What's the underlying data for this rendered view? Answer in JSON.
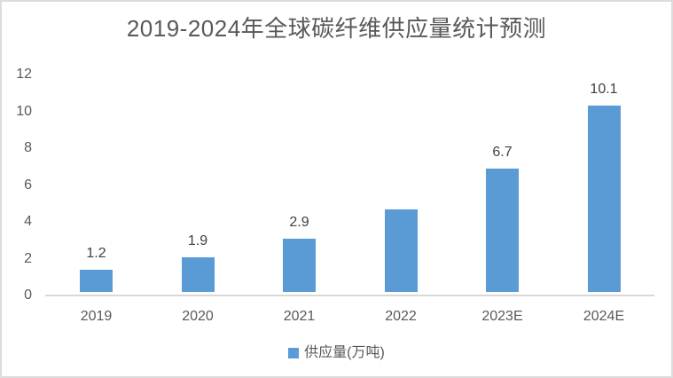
{
  "chart_data": {
    "type": "bar",
    "title": "2019-2024年全球碳纤维供应量统计预测",
    "categories": [
      "2019",
      "2020",
      "2021",
      "2022",
      "2023E",
      "2024E"
    ],
    "series": [
      {
        "name": "供应量(万吨)",
        "values": [
          1.2,
          1.9,
          2.9,
          4.5,
          6.7,
          10.1
        ],
        "data_labels": [
          "1.2",
          "1.9",
          "2.9",
          null,
          "6.7",
          "10.1"
        ],
        "color": "#5B9BD5"
      }
    ],
    "xlabel": "",
    "ylabel": "",
    "ylim": [
      0,
      12
    ],
    "y_ticks": [
      0,
      2,
      4,
      6,
      8,
      10,
      12
    ],
    "grid": false,
    "legend_position": "bottom"
  },
  "colors": {
    "bar": "#5B9BD5",
    "title_text": "#595959",
    "axis_text": "#595959",
    "data_label_text": "#404040",
    "axis_line": "#D9D9D9",
    "frame_border": "#DCDCDC",
    "background": "#FFFFFF"
  }
}
